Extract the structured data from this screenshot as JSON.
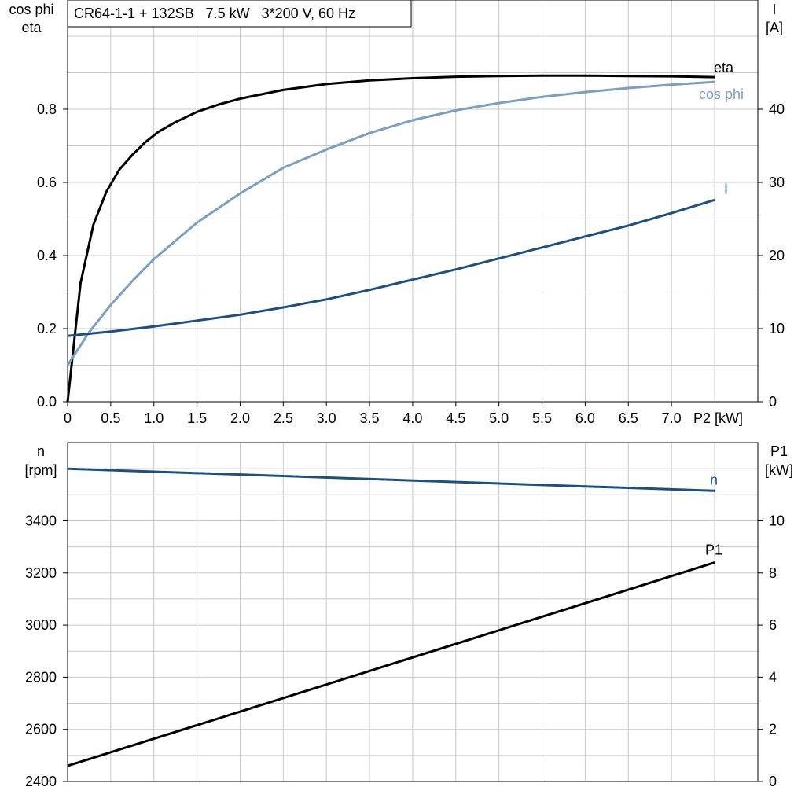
{
  "colors": {
    "eta": "#000000",
    "cos_phi": "#7b9fbf",
    "current": "#1c4f82",
    "speed": "#1c4f82",
    "p1": "#000000"
  },
  "chart_data": [
    {
      "type": "line",
      "title": "CR64-1-1 + 132SB   7.5 kW   3*200 V, 60 Hz",
      "xlabel": "P2 [kW]",
      "ylabel_left": [
        "cos phi",
        "eta"
      ],
      "ylabel_right": [
        "I",
        "[A]"
      ],
      "x_ticks": [
        "0",
        "0.5",
        "1.0",
        "1.5",
        "2.0",
        "2.5",
        "3.0",
        "3.5",
        "4.0",
        "4.5",
        "5.0",
        "5.5",
        "6.0",
        "6.5",
        "7.0"
      ],
      "xlim": [
        0,
        8
      ],
      "ylim_left": [
        0,
        1.0
      ],
      "ylim_right": [
        0,
        50
      ],
      "y_ticks_left": [
        "0.0",
        "0.2",
        "0.4",
        "0.6",
        "0.8"
      ],
      "y_ticks_right": [
        "0",
        "10",
        "20",
        "30",
        "40"
      ],
      "grid": true,
      "series": [
        {
          "name": "eta",
          "axis": "left",
          "x": [
            0,
            0.15,
            0.3,
            0.45,
            0.6,
            0.75,
            0.9,
            1.05,
            1.25,
            1.5,
            1.75,
            2.0,
            2.5,
            3.0,
            3.5,
            4.0,
            4.5,
            5.0,
            5.5,
            6.0,
            6.5,
            7.0,
            7.5
          ],
          "y": [
            0,
            0.325,
            0.485,
            0.575,
            0.635,
            0.675,
            0.71,
            0.738,
            0.765,
            0.793,
            0.813,
            0.829,
            0.853,
            0.869,
            0.879,
            0.885,
            0.889,
            0.891,
            0.892,
            0.892,
            0.891,
            0.89,
            0.888
          ]
        },
        {
          "name": "cos phi",
          "axis": "left",
          "x": [
            0,
            0.25,
            0.5,
            0.75,
            1.0,
            1.5,
            2.0,
            2.5,
            3.0,
            3.5,
            4.0,
            4.5,
            5.0,
            5.5,
            6.0,
            6.5,
            7.0,
            7.5
          ],
          "y": [
            0.1,
            0.19,
            0.265,
            0.33,
            0.39,
            0.49,
            0.57,
            0.64,
            0.69,
            0.735,
            0.77,
            0.797,
            0.817,
            0.834,
            0.847,
            0.858,
            0.867,
            0.875
          ]
        },
        {
          "name": "I",
          "axis": "right",
          "x": [
            0,
            0.5,
            1.0,
            1.5,
            2.0,
            2.5,
            3.0,
            3.5,
            4.0,
            4.5,
            5.0,
            5.5,
            6.0,
            6.5,
            7.0,
            7.5
          ],
          "y": [
            9.0,
            9.6,
            10.3,
            11.1,
            11.9,
            12.9,
            14.0,
            15.3,
            16.7,
            18.1,
            19.6,
            21.1,
            22.6,
            24.1,
            25.8,
            27.6
          ]
        }
      ]
    },
    {
      "type": "line",
      "ylabel_left": [
        "n",
        "[rpm]"
      ],
      "ylabel_right": [
        "P1",
        "[kW]"
      ],
      "xlim": [
        0,
        8
      ],
      "ylim_left": [
        2400,
        3700
      ],
      "ylim_right": [
        0,
        13
      ],
      "y_ticks_left": [
        "2400",
        "2600",
        "2800",
        "3000",
        "3200",
        "3400"
      ],
      "y_ticks_right": [
        "0",
        "2",
        "4",
        "6",
        "8",
        "10"
      ],
      "grid": true,
      "series": [
        {
          "name": "n",
          "axis": "left",
          "x": [
            0,
            7.5
          ],
          "y": [
            3600,
            3515
          ]
        },
        {
          "name": "P1",
          "axis": "right",
          "x": [
            0,
            7.5
          ],
          "y": [
            0.6,
            8.4
          ]
        }
      ]
    }
  ]
}
